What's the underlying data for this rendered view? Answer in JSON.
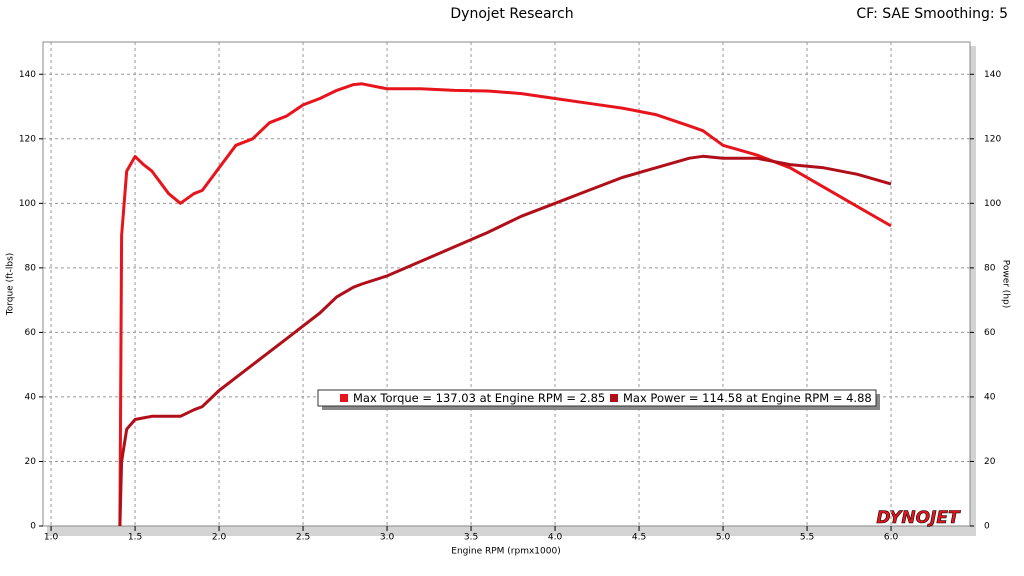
{
  "chart_data": {
    "type": "line",
    "title": "Dynojet Research",
    "subtitle": "CF: SAE Smoothing: 5",
    "x_label": "Engine RPM (rpmx1000)",
    "y_label": "Torque (ft-lbs)",
    "y2_label": "Power (hp)",
    "logo": "DYNOJET",
    "annotations": [
      "Max Torque = 137.03 at Engine RPM = 2.85",
      "Max Power = 114.58 at Engine RPM = 4.88"
    ],
    "x": [
      1.41,
      1.42,
      1.45,
      1.5,
      1.55,
      1.6,
      1.7,
      1.77,
      1.85,
      1.9,
      2.0,
      2.1,
      2.2,
      2.3,
      2.4,
      2.5,
      2.6,
      2.7,
      2.8,
      2.85,
      3.0,
      3.2,
      3.4,
      3.6,
      3.8,
      4.0,
      4.2,
      4.4,
      4.6,
      4.8,
      4.88,
      5.0,
      5.2,
      5.4,
      5.6,
      5.8,
      6.0
    ],
    "series": [
      {
        "color": "#e8141c",
        "values": [
          0,
          90,
          110,
          114.5,
          112,
          110,
          103,
          100,
          103,
          104,
          111,
          118,
          120,
          125,
          127,
          130.5,
          132.5,
          135,
          136.8,
          137.03,
          135.5,
          135.5,
          135,
          134.8,
          134,
          132.5,
          131,
          129.5,
          127.5,
          124,
          122.5,
          118,
          115,
          111,
          105,
          99,
          93
        ]
      },
      {
        "color": "#b00f1a",
        "axis": "y2",
        "values": [
          0,
          20,
          30,
          33,
          33.5,
          34,
          34,
          34,
          36,
          37,
          42,
          46,
          50,
          54,
          58,
          62,
          66,
          71,
          74,
          75,
          77.5,
          82,
          86.5,
          91,
          96,
          100,
          104,
          108,
          111,
          114,
          114.58,
          114,
          114,
          112,
          111,
          109,
          106
        ]
      }
    ],
    "xlim": [
      0.952,
      6.47
    ],
    "xticks": [
      {
        "value": 1,
        "label": "1.0"
      },
      1.5,
      {
        "value": 2,
        "label": "2.0"
      },
      2.5,
      {
        "value": 3,
        "label": "3.0"
      },
      3.5,
      {
        "value": 4,
        "label": "4.0"
      },
      4.5,
      {
        "value": 5,
        "label": "5.0"
      },
      5.5,
      {
        "value": 6,
        "label": "6.0"
      }
    ],
    "ylim": [
      0,
      150
    ],
    "yticks": [
      0,
      20,
      40,
      60,
      80,
      100,
      120,
      140
    ],
    "y2lim": [
      0,
      150
    ],
    "y2ticks": [
      0,
      20,
      40,
      60,
      80,
      100,
      120,
      140
    ],
    "grid": true
  }
}
